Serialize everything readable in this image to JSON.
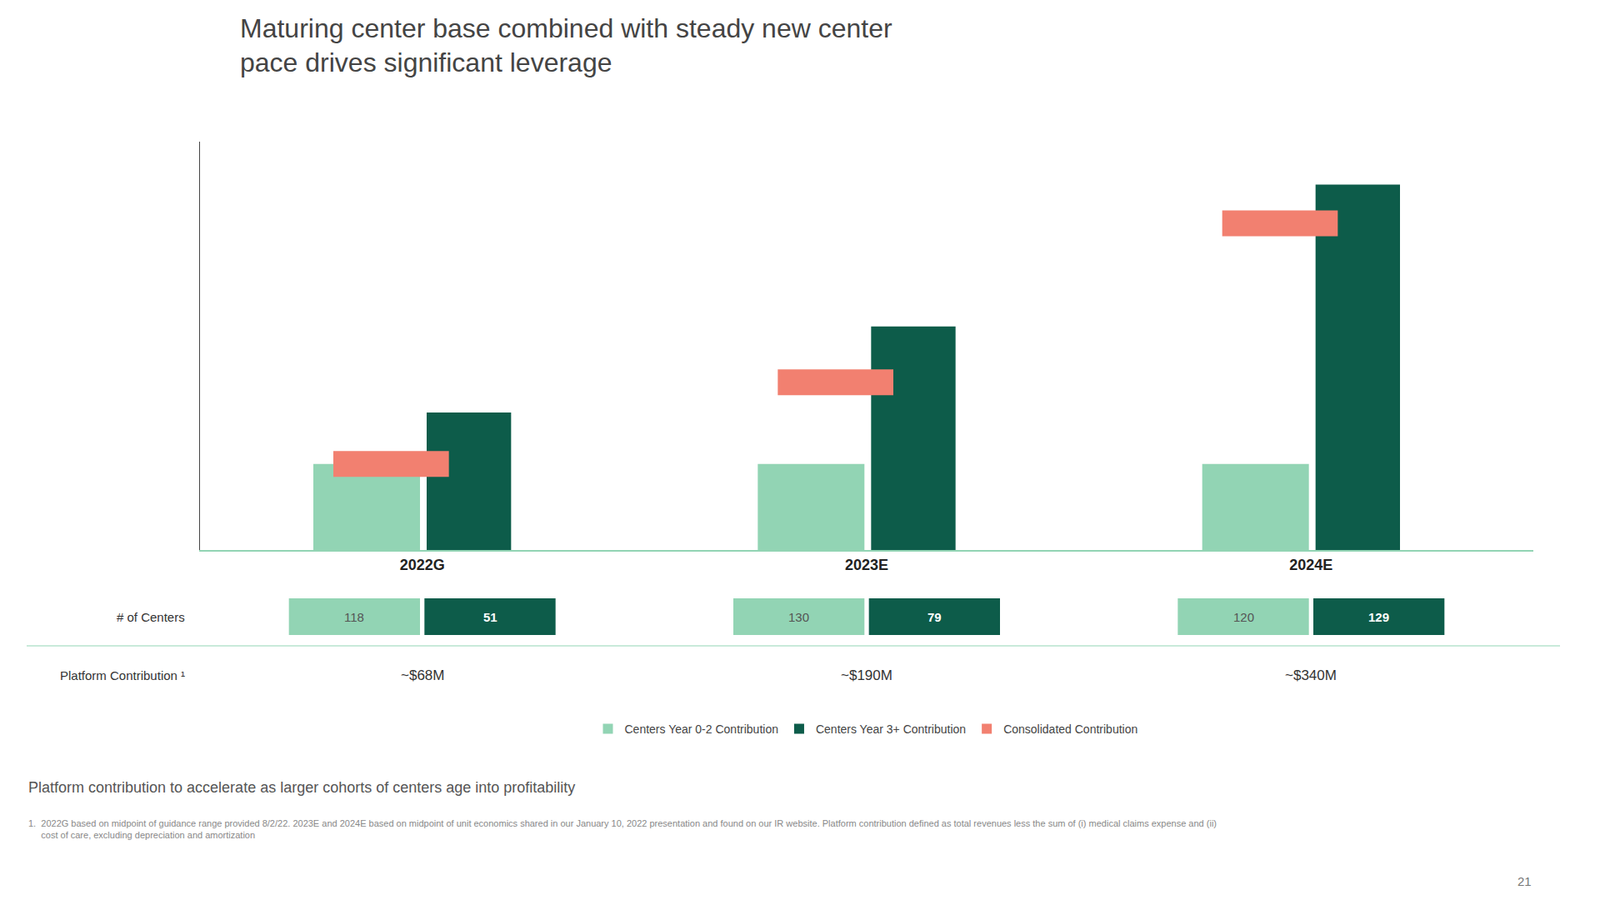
{
  "chart_data": {
    "type": "bar",
    "title": "Maturing center base combined with steady new center\npace drives significant leverage",
    "categories": [
      "2022G",
      "2023E",
      "2024E"
    ],
    "series": [
      {
        "name": "Centers Year 0-2 Contribution",
        "color": "#92d4b4",
        "values": [
          2.0,
          2.0,
          2.0
        ]
      },
      {
        "name": "Centers Year 3+ Contribution",
        "color": "#0d5c4a",
        "values": [
          3.2,
          5.2,
          8.5
        ]
      },
      {
        "name": "Consolidated Contribution",
        "color": "#f28070",
        "values": [
          0.6,
          0.6,
          0.6
        ],
        "bottoms": [
          1.7,
          3.6,
          7.3
        ]
      }
    ],
    "ylim": [
      0,
      9.5
    ],
    "grid": false,
    "legend": "bottom",
    "tick_labels": "x",
    "table": [
      {
        "label": "# of Centers",
        "values": [
          [
            118,
            51
          ],
          [
            130,
            79
          ],
          [
            120,
            129
          ]
        ]
      },
      {
        "label": "Platform Contribution ¹",
        "values": [
          "~$68M",
          "~$190M",
          "~$340M"
        ]
      }
    ],
    "note": "Platform contribution to accelerate as larger cohorts of centers age into profitability",
    "footnote": "1.  2022G based on midpoint of guidance range provided 8/2/22. 2023E and 2024E based on midpoint of unit economics shared in our January 10, 2022 presentation and found on our IR website. Platform contribution defined as total revenues less the sum of (i) medical claims expense and (ii)\n     cost of care, excluding depreciation and amortization",
    "page_number": "21"
  }
}
